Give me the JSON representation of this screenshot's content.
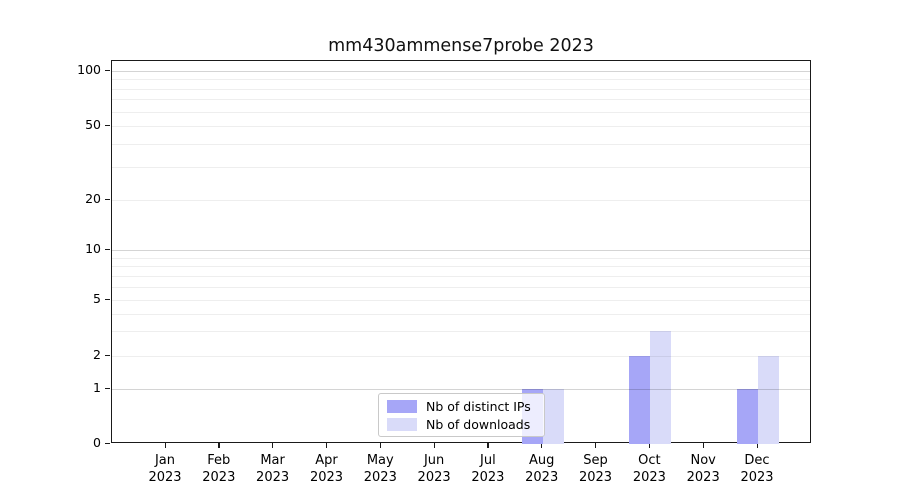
{
  "title": "mm430ammense7probe 2023",
  "chart_data": {
    "type": "bar",
    "title": "mm430ammense7probe 2023",
    "categories": [
      "Jan 2023",
      "Feb 2023",
      "Mar 2023",
      "Apr 2023",
      "May 2023",
      "Jun 2023",
      "Jul 2023",
      "Aug 2023",
      "Sep 2023",
      "Oct 2023",
      "Nov 2023",
      "Dec 2023"
    ],
    "series": [
      {
        "name": "Nb of distinct IPs",
        "color": "#a6a6f7",
        "values": [
          0,
          0,
          0,
          0,
          0,
          0,
          0,
          1,
          0,
          2,
          0,
          1
        ]
      },
      {
        "name": "Nb of downloads",
        "color": "#d9dbf9",
        "values": [
          0,
          0,
          0,
          0,
          0,
          0,
          0,
          1,
          0,
          3,
          0,
          2
        ]
      }
    ],
    "xlabel": "",
    "ylabel": "",
    "yscale": "symlog",
    "ylim": [
      0,
      100
    ],
    "yticks": [
      0,
      1,
      2,
      5,
      10,
      20,
      50,
      100
    ],
    "minor_gridline_values": [
      2,
      3,
      4,
      5,
      6,
      7,
      8,
      9,
      20,
      30,
      40,
      50,
      60,
      70,
      80,
      90
    ],
    "major_gridline_values": [
      1,
      10,
      100
    ],
    "grid": "on",
    "legend_position": "lower-center",
    "legend": [
      {
        "label": "Nb of distinct IPs",
        "color": "#a6a6f7"
      },
      {
        "label": "Nb of downloads",
        "color": "#d9dbf9"
      }
    ]
  }
}
